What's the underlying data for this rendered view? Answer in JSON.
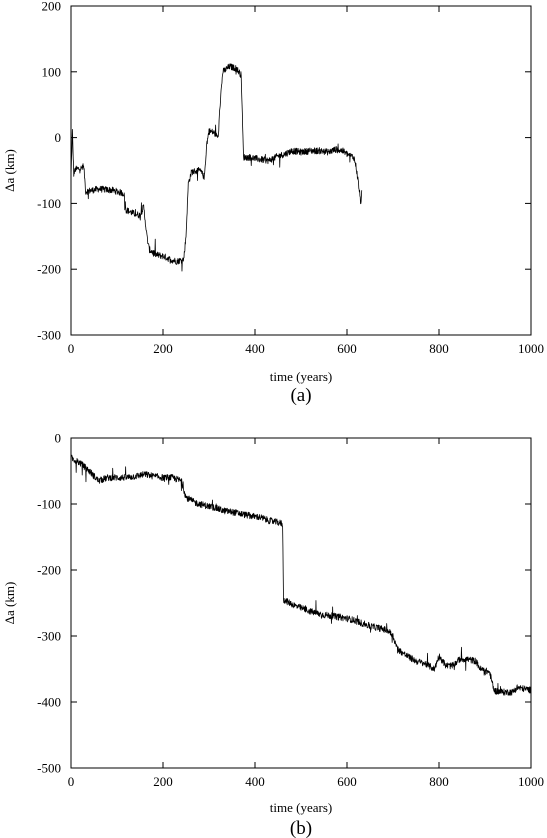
{
  "chart_data": [
    {
      "type": "line",
      "panel_label": "(a)",
      "xlabel": "time (years)",
      "ylabel": "Δa (km)",
      "xlim": [
        0,
        1000
      ],
      "ylim": [
        -300,
        200
      ],
      "xticks": [
        0,
        200,
        400,
        600,
        800,
        1000
      ],
      "yticks": [
        -300,
        -200,
        -100,
        0,
        100,
        200
      ],
      "xtick_labels": [
        "0",
        "200",
        "400",
        "600",
        "800",
        "1000"
      ],
      "ytick_labels": [
        "-300",
        "-200",
        "-100",
        "0",
        "100",
        "200"
      ],
      "grid": false,
      "series": [
        {
          "color": "#000000",
          "points": [
            [
              0,
              -60
            ],
            [
              3,
              10
            ],
            [
              6,
              -55
            ],
            [
              10,
              -48
            ],
            [
              20,
              -47
            ],
            [
              28,
              -46
            ],
            [
              32,
              -82
            ],
            [
              60,
              -78
            ],
            [
              90,
              -80
            ],
            [
              115,
              -85
            ],
            [
              120,
              -110
            ],
            [
              135,
              -115
            ],
            [
              150,
              -118
            ],
            [
              158,
              -105
            ],
            [
              165,
              -150
            ],
            [
              170,
              -170
            ],
            [
              185,
              -178
            ],
            [
              200,
              -180
            ],
            [
              215,
              -185
            ],
            [
              230,
              -188
            ],
            [
              245,
              -185
            ],
            [
              250,
              -150
            ],
            [
              255,
              -70
            ],
            [
              262,
              -52
            ],
            [
              280,
              -50
            ],
            [
              290,
              -60
            ],
            [
              295,
              -10
            ],
            [
              300,
              10
            ],
            [
              310,
              8
            ],
            [
              320,
              0
            ],
            [
              325,
              60
            ],
            [
              330,
              100
            ],
            [
              345,
              108
            ],
            [
              360,
              105
            ],
            [
              370,
              95
            ],
            [
              375,
              -30
            ],
            [
              390,
              -30
            ],
            [
              410,
              -33
            ],
            [
              430,
              -35
            ],
            [
              450,
              -28
            ],
            [
              465,
              -25
            ],
            [
              480,
              -20
            ],
            [
              500,
              -22
            ],
            [
              520,
              -20
            ],
            [
              540,
              -20
            ],
            [
              560,
              -22
            ],
            [
              575,
              -18
            ],
            [
              590,
              -20
            ],
            [
              600,
              -25
            ],
            [
              615,
              -30
            ],
            [
              620,
              -45
            ],
            [
              625,
              -70
            ],
            [
              630,
              -100
            ],
            [
              632,
              -80
            ]
          ]
        }
      ]
    },
    {
      "type": "line",
      "panel_label": "(b)",
      "xlabel": "time (years)",
      "ylabel": "Δa (km)",
      "xlim": [
        0,
        1000
      ],
      "ylim": [
        -500,
        0
      ],
      "xticks": [
        0,
        200,
        400,
        600,
        800,
        1000
      ],
      "yticks": [
        -500,
        -400,
        -300,
        -200,
        -100,
        0
      ],
      "xtick_labels": [
        "0",
        "200",
        "400",
        "600",
        "800",
        "1000"
      ],
      "ytick_labels": [
        "-500",
        "-400",
        "-300",
        "-200",
        "-100",
        "0"
      ],
      "grid": false,
      "series": [
        {
          "color": "#000000",
          "points": [
            [
              0,
              -30
            ],
            [
              20,
              -38
            ],
            [
              40,
              -50
            ],
            [
              60,
              -65
            ],
            [
              80,
              -60
            ],
            [
              100,
              -60
            ],
            [
              120,
              -60
            ],
            [
              140,
              -58
            ],
            [
              160,
              -55
            ],
            [
              180,
              -58
            ],
            [
              200,
              -60
            ],
            [
              220,
              -60
            ],
            [
              240,
              -65
            ],
            [
              250,
              -90
            ],
            [
              270,
              -98
            ],
            [
              290,
              -102
            ],
            [
              310,
              -105
            ],
            [
              330,
              -110
            ],
            [
              350,
              -112
            ],
            [
              370,
              -115
            ],
            [
              390,
              -118
            ],
            [
              410,
              -120
            ],
            [
              430,
              -125
            ],
            [
              450,
              -128
            ],
            [
              460,
              -130
            ],
            [
              462,
              -245
            ],
            [
              470,
              -248
            ],
            [
              490,
              -255
            ],
            [
              510,
              -260
            ],
            [
              530,
              -265
            ],
            [
              550,
              -268
            ],
            [
              570,
              -270
            ],
            [
              590,
              -272
            ],
            [
              610,
              -275
            ],
            [
              630,
              -280
            ],
            [
              650,
              -285
            ],
            [
              670,
              -288
            ],
            [
              690,
              -292
            ],
            [
              700,
              -300
            ],
            [
              710,
              -320
            ],
            [
              730,
              -330
            ],
            [
              750,
              -338
            ],
            [
              770,
              -342
            ],
            [
              790,
              -350
            ],
            [
              800,
              -330
            ],
            [
              815,
              -345
            ],
            [
              830,
              -345
            ],
            [
              845,
              -335
            ],
            [
              860,
              -335
            ],
            [
              880,
              -338
            ],
            [
              890,
              -350
            ],
            [
              910,
              -355
            ],
            [
              920,
              -383
            ],
            [
              940,
              -385
            ],
            [
              960,
              -385
            ],
            [
              970,
              -378
            ],
            [
              985,
              -380
            ],
            [
              1000,
              -382
            ]
          ]
        }
      ]
    }
  ]
}
